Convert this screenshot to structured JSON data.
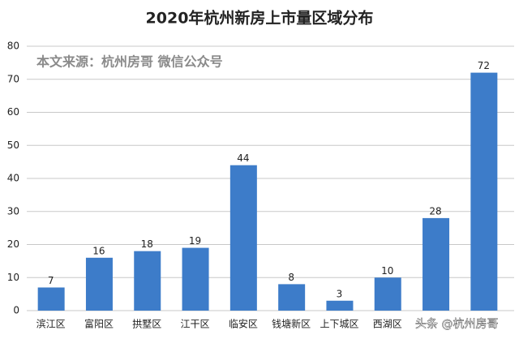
{
  "chart_data": {
    "type": "bar",
    "title": "2020年杭州新房上市量区域分布",
    "annotation": "本文来源：杭州房哥 微信公众号",
    "watermark": "头条 @杭州房哥",
    "categories": [
      "滨江区",
      "富阳区",
      "拱墅区",
      "江干区",
      "临安区",
      "钱塘新区",
      "上下城区",
      "西湖区",
      null,
      null
    ],
    "values": [
      7,
      16,
      18,
      19,
      44,
      8,
      3,
      10,
      28,
      72
    ],
    "color": "#3d7cc9",
    "ylim": [
      0,
      80
    ],
    "yticks": [
      0,
      10,
      20,
      30,
      40,
      50,
      60,
      70,
      80
    ],
    "grid": true
  }
}
